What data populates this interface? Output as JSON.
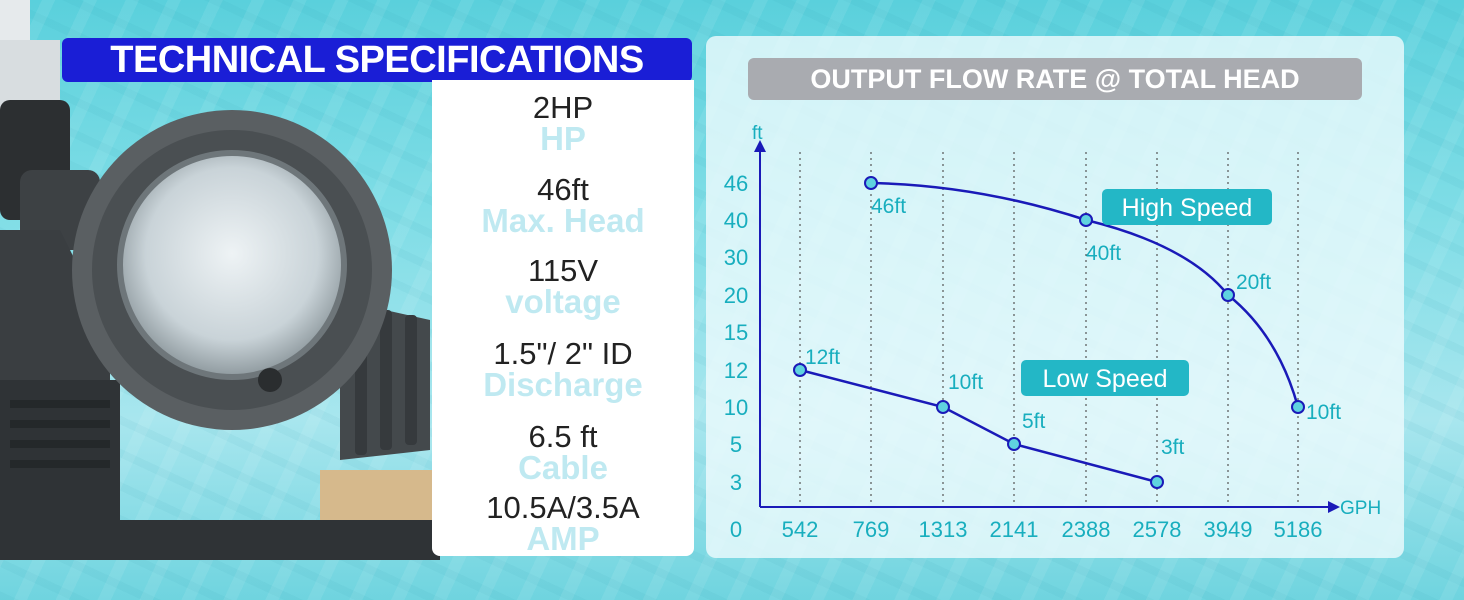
{
  "header": {
    "title": "TECHNICAL SPECIFICATIONS"
  },
  "specs": [
    {
      "value": "2HP",
      "label": "HP"
    },
    {
      "value": "46ft",
      "label": "Max. Head"
    },
    {
      "value": "115V",
      "label": "voltage"
    },
    {
      "value": "1.5\"/ 2\" ID",
      "label": "Discharge"
    },
    {
      "value": "6.5 ft",
      "label": "Cable"
    },
    {
      "value": "10.5A/3.5A",
      "label": "AMP"
    }
  ],
  "colors": {
    "banner": "#1a1ed6",
    "curve": "#1a1ab8",
    "accent": "#18aebe",
    "marker_fill": "#5fd3df"
  },
  "chart_data": {
    "type": "line",
    "title": "OUTPUT FLOW RATE @ TOTAL HEAD",
    "xlabel": "GPH",
    "ylabel": "ft",
    "categories": [
      "0",
      "542",
      "769",
      "1313",
      "2141",
      "2388",
      "2578",
      "3949",
      "5186"
    ],
    "y_ticks": [
      "3",
      "5",
      "10",
      "12",
      "15",
      "20",
      "30",
      "40",
      "46"
    ],
    "y_origin_label": "0",
    "grid": "vertical dotted",
    "series": [
      {
        "name": "High Speed",
        "points": [
          {
            "x": "769",
            "y": 46,
            "label": "46ft"
          },
          {
            "x": "2388",
            "y": 40,
            "label": "40ft"
          },
          {
            "x": "3949",
            "y": 20,
            "label": "20ft"
          },
          {
            "x": "5186",
            "y": 10,
            "label": "10ft"
          }
        ]
      },
      {
        "name": "Low Speed",
        "points": [
          {
            "x": "542",
            "y": 12,
            "label": "12ft"
          },
          {
            "x": "1313",
            "y": 10,
            "label": "10ft"
          },
          {
            "x": "2141",
            "y": 5,
            "label": "5ft"
          },
          {
            "x": "2578",
            "y": 3,
            "label": "3ft"
          }
        ]
      }
    ]
  }
}
